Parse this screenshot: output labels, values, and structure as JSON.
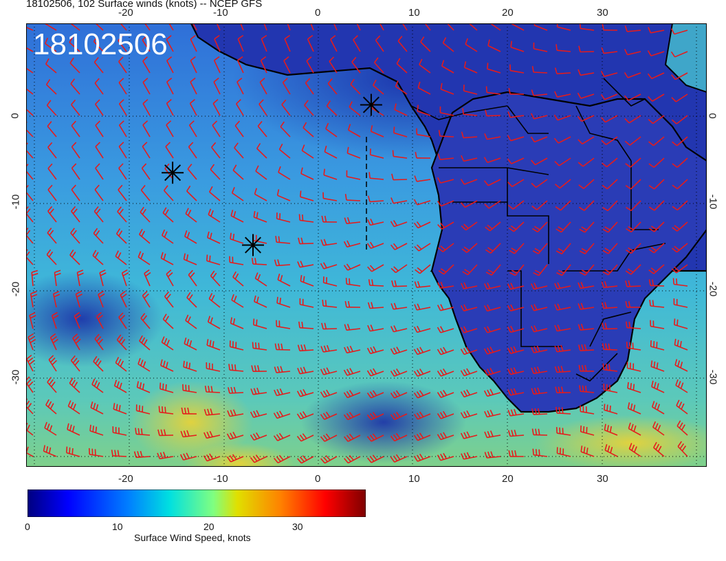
{
  "title": "18102506, 102 Surface winds (knots) -- NCEP GFS",
  "overlay_label": "18102506",
  "map": {
    "lon_range": [
      -30,
      42
    ],
    "lat_range": [
      -40,
      9
    ],
    "top_lon_ticks": [
      "-20",
      "-10",
      "0",
      "10",
      "20",
      "30"
    ],
    "bottom_lon_ticks": [
      "-20",
      "-10",
      "0",
      "10",
      "20",
      "30"
    ],
    "left_lat_ticks": [
      "0",
      "-10",
      "-20",
      "-30"
    ],
    "right_lat_ticks": [
      "0",
      "-10",
      "-20",
      "-30"
    ],
    "symbol_markers": [
      {
        "name": "storm-marker-1",
        "lon": -14.5,
        "lat": -7.5
      },
      {
        "name": "storm-marker-2",
        "lon": -6,
        "lat": -15.5
      },
      {
        "name": "storm-marker-3",
        "lon": 6.5,
        "lat": 0
      }
    ],
    "colors": {
      "ocean_low": "#1a3fbf",
      "land": "#1c2a9c",
      "barb": "#e51b1b",
      "coast": "#000000"
    }
  },
  "colorbar": {
    "title": "Surface Wind Speed, knots",
    "ticks": [
      "0",
      "10",
      "20",
      "30"
    ],
    "range": [
      0,
      38
    ],
    "colormap": "jet"
  }
}
